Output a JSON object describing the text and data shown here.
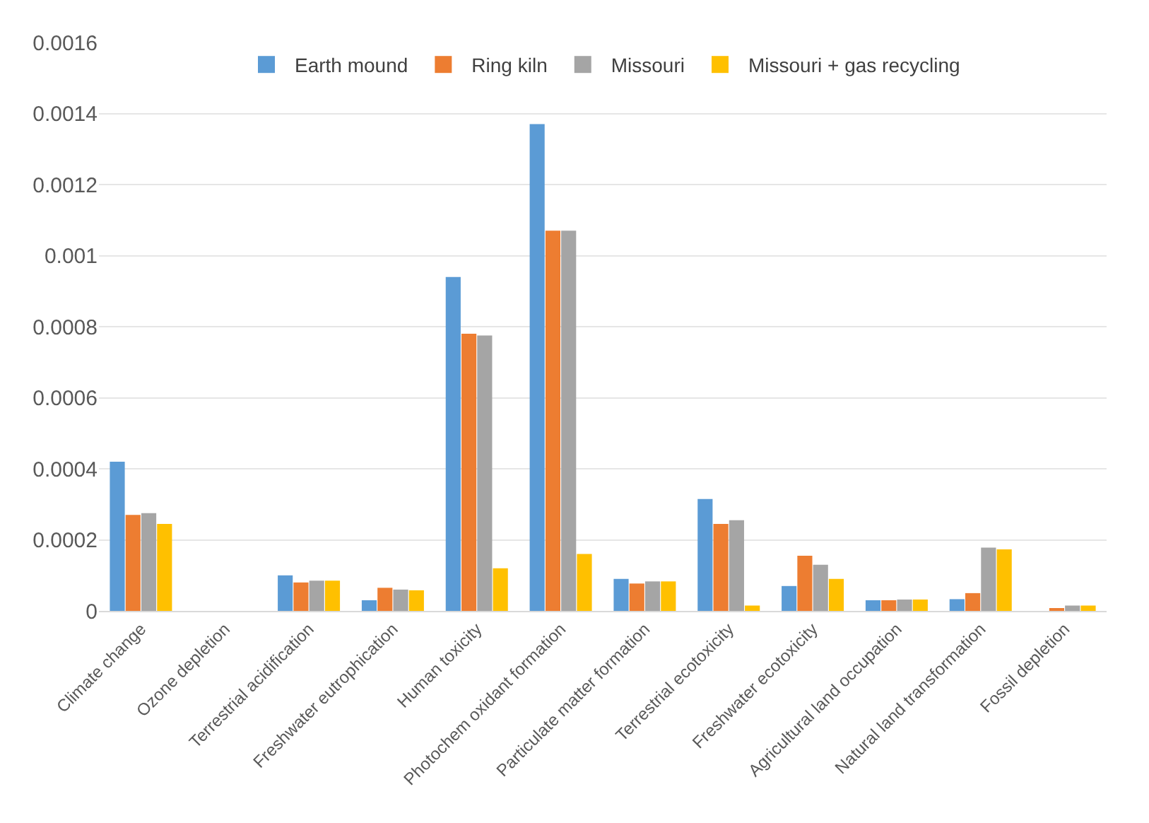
{
  "chart_data": {
    "type": "bar",
    "categories": [
      "Climate change",
      "Ozone depletion",
      "Terrestrial acidification",
      "Freshwater eutrophication",
      "Human toxicity",
      "Photochem oxidant formation",
      "Particulate matter formation",
      "Terrestrial ecotoxicity",
      "Freshwater ecotoxicity",
      "Agricultural land occupation",
      "Natural land transformation",
      "Fossil depletion"
    ],
    "series": [
      {
        "name": "Earth mound",
        "color": "#5b9bd5",
        "values": [
          0.00042,
          0,
          0.0001,
          3e-05,
          0.00094,
          0.00137,
          9e-05,
          0.000315,
          7e-05,
          3e-05,
          3.3e-05,
          0
        ]
      },
      {
        "name": "Ring kiln",
        "color": "#ed7d31",
        "values": [
          0.00027,
          0,
          8e-05,
          6.5e-05,
          0.00078,
          0.00107,
          7.7e-05,
          0.000245,
          0.000155,
          3e-05,
          5e-05,
          6e-06
        ]
      },
      {
        "name": "Missouri",
        "color": "#a5a5a5",
        "values": [
          0.000275,
          0,
          8.5e-05,
          6e-05,
          0.000775,
          0.00107,
          8.3e-05,
          0.000255,
          0.00013,
          3.2e-05,
          0.000178,
          1.5e-05
        ]
      },
      {
        "name": "Missouri + gas recycling",
        "color": "#ffc000",
        "values": [
          0.000245,
          0,
          8.5e-05,
          5.8e-05,
          0.00012,
          0.00016,
          8.3e-05,
          1.5e-05,
          9e-05,
          3.2e-05,
          0.000173,
          1.5e-05
        ]
      }
    ],
    "ylim": [
      0,
      0.0016
    ],
    "yticks": [
      0,
      0.0002,
      0.0004,
      0.0006,
      0.0008,
      0.001,
      0.0012,
      0.0014,
      0.0016
    ],
    "grid": "y",
    "legend": "top"
  }
}
